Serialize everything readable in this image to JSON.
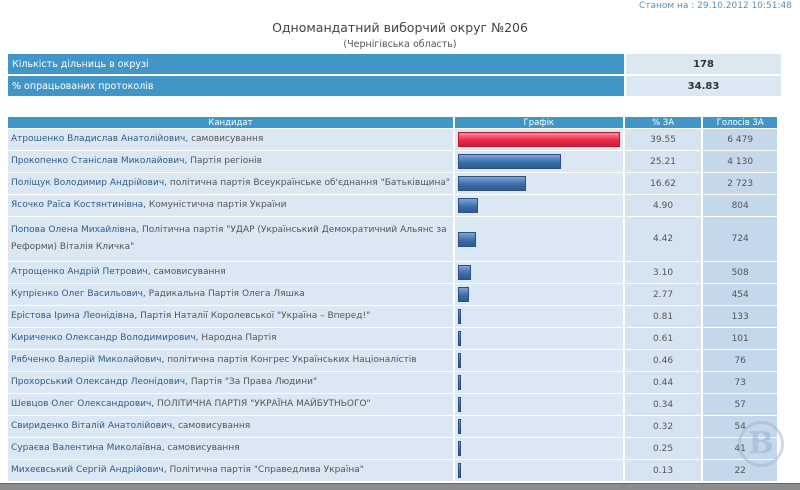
{
  "timestamp": "Станом на : 29.10.2012 10:51:48",
  "title": "Одномандатний виборчий округ №206",
  "subtitle": "(Чернігівська область)",
  "summary": [
    {
      "label": "Кількість дільниць в окрузі",
      "value": "178"
    },
    {
      "label": "% опрацьованих протоколів",
      "value": "34.83"
    }
  ],
  "headers": {
    "candidate": "Кандидат",
    "chart": "Графік",
    "pct": "% ЗА",
    "votes": "Голосів ЗА"
  },
  "colors": {
    "header": "#4196c7",
    "leader_bar": "#e8294a",
    "bar": "#3d6ea8"
  },
  "rows": [
    {
      "name": "Атрошенко Владислав Анатолійович,",
      "party": " самовисування",
      "pct": "39.55",
      "votes": "6 479"
    },
    {
      "name": "Прокопенко Станіслав Миколайович,",
      "party": " Партія регіонів",
      "pct": "25.21",
      "votes": "4 130"
    },
    {
      "name": "Поліщук Володимир Андрійович,",
      "party": " політична партія Всеукраїнське об'єднання \"Батьківщина\"",
      "pct": "16.62",
      "votes": "2 723"
    },
    {
      "name": "Ясочко Раїса Костянтинівна,",
      "party": " Комуністична партія України",
      "pct": "4.90",
      "votes": "804"
    },
    {
      "name": "Попова Олена Михайлівна,",
      "party": " Політична партія \"УДАР (Український Демократичний Альянс за Реформи) Віталія Кличка\"",
      "pct": "4.42",
      "votes": "724"
    },
    {
      "name": "Атрощенко Андрій Петрович,",
      "party": " самовисування",
      "pct": "3.10",
      "votes": "508"
    },
    {
      "name": "Купрієнко Олег Васильович,",
      "party": " Радикальна Партія Олега Ляшка",
      "pct": "2.77",
      "votes": "454"
    },
    {
      "name": "Ерістова Ірина Леонідівна,",
      "party": " Партія Наталії Королевської \"Україна – Вперед!\"",
      "pct": "0.81",
      "votes": "133"
    },
    {
      "name": "Кириченко Олександр Володимирович,",
      "party": " Народна Партія",
      "pct": "0.61",
      "votes": "101"
    },
    {
      "name": "Рябченко Валерій Миколайович,",
      "party": " політична партія Конгрес Українських Націоналістів",
      "pct": "0.46",
      "votes": "76"
    },
    {
      "name": "Прохорський Олександр Леонідович,",
      "party": " Партія \"За Права Людини\"",
      "pct": "0.44",
      "votes": "73"
    },
    {
      "name": "Шевцов Олег Олександрович,",
      "party": " ПОЛІТИЧНА ПАРТІЯ \"УКРАЇНА МАЙБУТНЬОГО\"",
      "pct": "0.34",
      "votes": "57"
    },
    {
      "name": "Свириденко Віталій Анатолійович,",
      "party": " самовисування",
      "pct": "0.32",
      "votes": "54"
    },
    {
      "name": "Сураєва Валентина Миколаївна,",
      "party": " самовисування",
      "pct": "0.25",
      "votes": "41"
    },
    {
      "name": "Михеєвський Сергій Андрійович,",
      "party": " Політична партія \"Справедлива Україна\"",
      "pct": "0.13",
      "votes": "22"
    }
  ]
}
